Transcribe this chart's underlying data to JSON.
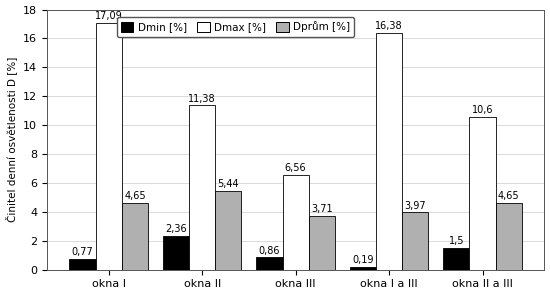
{
  "categories": [
    "okna I",
    "okna II",
    "okna III",
    "okna I a III",
    "okna II a III"
  ],
  "dmin": [
    0.77,
    2.36,
    0.86,
    0.19,
    1.5
  ],
  "dmax": [
    17.09,
    11.38,
    6.56,
    16.38,
    10.6
  ],
  "dprum": [
    4.65,
    5.44,
    3.71,
    3.97,
    4.65
  ],
  "colors": {
    "dmin": "#000000",
    "dmax": "#ffffff",
    "dprum": "#b0b0b0"
  },
  "bar_edge_color": "#000000",
  "ylabel": "Činitel denní osvětlenosti D [%]",
  "ylim": [
    0,
    18
  ],
  "yticks": [
    0,
    2,
    4,
    6,
    8,
    10,
    12,
    14,
    16,
    18
  ],
  "legend_labels": [
    "Dmin [%]",
    "Dmax [%]",
    "Dprům [%]"
  ],
  "bar_width": 0.28,
  "label_fontsize": 7.5,
  "tick_fontsize": 8,
  "annot_fontsize": 7.0,
  "background_color": "#ffffff",
  "grid_color": "#cccccc"
}
